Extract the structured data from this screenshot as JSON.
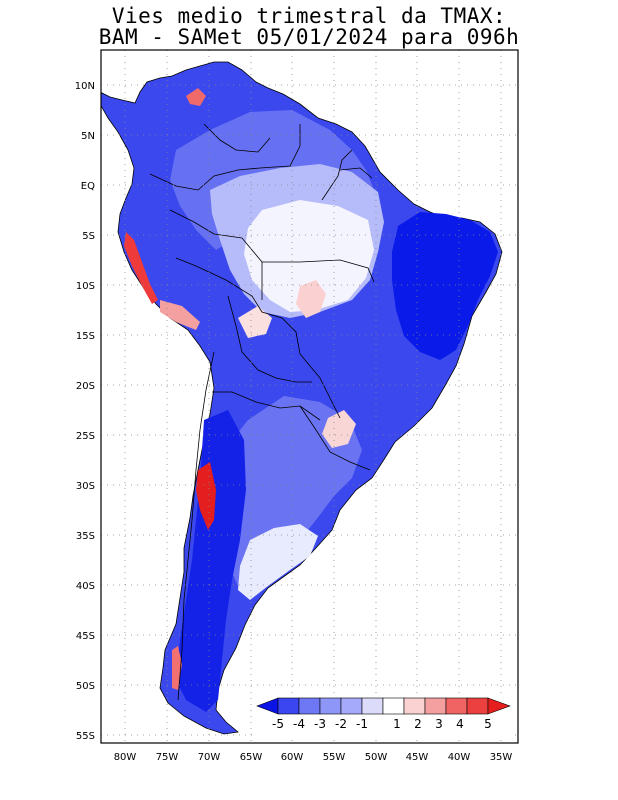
{
  "title": {
    "line1": "Vies medio trimestral da TMAX:",
    "line2": "BAM - SAMet 05/01/2024  para 096h"
  },
  "lat_ticks": [
    "10N",
    "5N",
    "EQ",
    "5S",
    "10S",
    "15S",
    "20S",
    "25S",
    "30S",
    "35S",
    "40S",
    "45S",
    "50S",
    "55S"
  ],
  "lon_ticks": [
    "80W",
    "75W",
    "70W",
    "65W",
    "60W",
    "55W",
    "50W",
    "45W",
    "40W",
    "35W"
  ],
  "colorbar": {
    "labels": [
      "-5",
      "-4",
      "-3",
      "-2",
      "-1",
      "1",
      "2",
      "3",
      "4",
      "5"
    ],
    "colors": [
      "#0a14e6",
      "#3c46f0",
      "#6e78f5",
      "#a5aafa",
      "#dcdcfa",
      "#ffffff",
      "#fad2d2",
      "#f5a0a0",
      "#f06464",
      "#e61e1e"
    ]
  },
  "colors": {
    "strong_cold": "#1e2ce6",
    "medium_cold": "#5a64f0",
    "light_cold": "#b4b9fa",
    "neutral": "#ffffff",
    "warm": "#f06464"
  }
}
